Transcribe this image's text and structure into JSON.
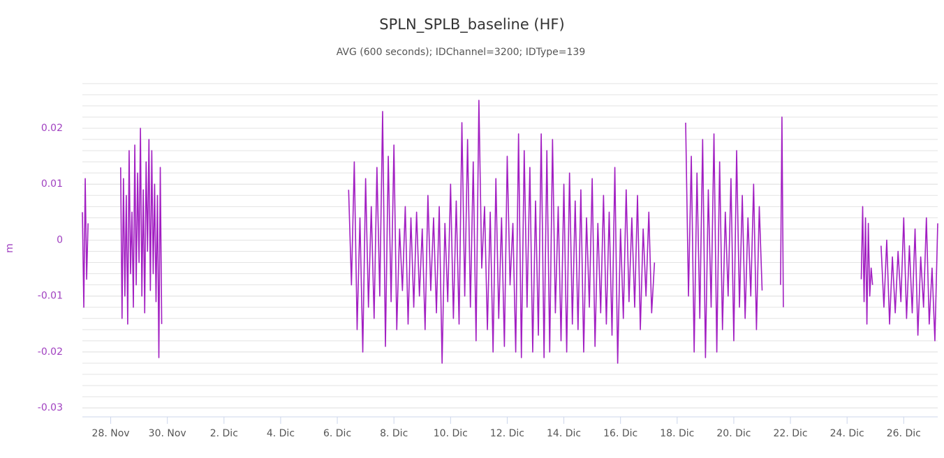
{
  "chart_data": {
    "type": "line",
    "title": "SPLN_SPLB_baseline (HF)",
    "subtitle": "AVG (600 seconds); IDChannel=3200; IDType=139",
    "y_label": "m",
    "xlim": [
      27,
      57.2
    ],
    "xticks": [
      {
        "value": 28,
        "label": "28. Nov"
      },
      {
        "value": 30,
        "label": "30. Nov"
      },
      {
        "value": 32,
        "label": "2. Dic"
      },
      {
        "value": 34,
        "label": "4. Dic"
      },
      {
        "value": 36,
        "label": "6. Dic"
      },
      {
        "value": 38,
        "label": "8. Dic"
      },
      {
        "value": 40,
        "label": "10. Dic"
      },
      {
        "value": 42,
        "label": "12. Dic"
      },
      {
        "value": 44,
        "label": "14. Dic"
      },
      {
        "value": 46,
        "label": "16. Dic"
      },
      {
        "value": 48,
        "label": "18. Dic"
      },
      {
        "value": 50,
        "label": "20. Dic"
      },
      {
        "value": 52,
        "label": "22. Dic"
      },
      {
        "value": 54,
        "label": "24. Dic"
      },
      {
        "value": 56,
        "label": "26. Dic"
      }
    ],
    "ylim": [
      -0.0316,
      0.0286
    ],
    "yticks": [
      -0.03,
      -0.02,
      -0.01,
      0,
      0.01,
      0.02
    ],
    "grid": true,
    "minor_grid_interval": 0.002,
    "color": "#a21fc2",
    "x": [
      27,
      27.05,
      27.1,
      27.15,
      27.2,
      27.6,
      28.35,
      28.4,
      28.45,
      28.5,
      28.55,
      28.6,
      28.65,
      28.7,
      28.75,
      28.8,
      28.85,
      28.9,
      28.95,
      29,
      29.05,
      29.1,
      29.15,
      29.2,
      29.25,
      29.3,
      29.35,
      29.4,
      29.45,
      29.5,
      29.55,
      29.6,
      29.65,
      29.7,
      29.75,
      29.8,
      32,
      36.4,
      36.5,
      36.6,
      36.7,
      36.8,
      36.9,
      37,
      37.1,
      37.2,
      37.3,
      37.4,
      37.5,
      37.6,
      37.7,
      37.8,
      37.9,
      38,
      38.1,
      38.2,
      38.3,
      38.4,
      38.5,
      38.6,
      38.7,
      38.8,
      38.9,
      39,
      39.1,
      39.2,
      39.3,
      39.4,
      39.5,
      39.6,
      39.7,
      39.8,
      39.9,
      40,
      40.1,
      40.2,
      40.3,
      40.4,
      40.5,
      40.6,
      40.7,
      40.8,
      40.9,
      41,
      41.1,
      41.2,
      41.3,
      41.4,
      41.5,
      41.6,
      41.7,
      41.8,
      41.9,
      42,
      42.1,
      42.2,
      42.3,
      42.4,
      42.5,
      42.6,
      42.7,
      42.8,
      42.9,
      43,
      43.1,
      43.2,
      43.3,
      43.4,
      43.5,
      43.6,
      43.7,
      43.8,
      43.9,
      44,
      44.1,
      44.2,
      44.3,
      44.4,
      44.5,
      44.6,
      44.7,
      44.8,
      44.9,
      45,
      45.1,
      45.2,
      45.3,
      45.4,
      45.5,
      45.6,
      45.7,
      45.8,
      45.9,
      46,
      46.1,
      46.2,
      46.3,
      46.4,
      46.5,
      46.6,
      46.7,
      46.8,
      46.9,
      47,
      47.1,
      47.2,
      47.8,
      48.3,
      48.4,
      48.5,
      48.6,
      48.7,
      48.8,
      48.9,
      49,
      49.1,
      49.2,
      49.3,
      49.4,
      49.5,
      49.6,
      49.7,
      49.8,
      49.9,
      50,
      50.1,
      50.2,
      50.3,
      50.4,
      50.5,
      50.6,
      50.7,
      50.8,
      50.9,
      51,
      51.3,
      51.65,
      51.7,
      51.75,
      53,
      54.5,
      54.55,
      54.6,
      54.65,
      54.7,
      54.75,
      54.8,
      54.85,
      54.9,
      55.05,
      55.2,
      55.3,
      55.4,
      55.5,
      55.6,
      55.7,
      55.8,
      55.9,
      56,
      56.1,
      56.2,
      56.3,
      56.4,
      56.5,
      56.6,
      56.7,
      56.8,
      56.9,
      57,
      57.1,
      57.2
    ],
    "values": [
      0.005,
      -0.012,
      0.011,
      -0.007,
      0.003,
      null,
      0.013,
      -0.014,
      0.011,
      -0.01,
      0.008,
      -0.015,
      0.016,
      -0.006,
      0.005,
      -0.012,
      0.017,
      -0.008,
      0.012,
      -0.004,
      0.02,
      -0.01,
      0.009,
      -0.013,
      0.014,
      -0.002,
      0.018,
      -0.009,
      0.016,
      -0.006,
      0.01,
      -0.011,
      0.008,
      -0.021,
      0.013,
      -0.015,
      null,
      0.009,
      -0.008,
      0.014,
      -0.016,
      0.004,
      -0.02,
      0.011,
      -0.012,
      0.006,
      -0.014,
      0.013,
      -0.01,
      0.023,
      -0.019,
      0.015,
      -0.011,
      0.017,
      -0.016,
      0.002,
      -0.009,
      0.006,
      -0.015,
      0.004,
      -0.012,
      0.005,
      -0.01,
      0.002,
      -0.016,
      0.008,
      -0.009,
      0.004,
      -0.013,
      0.006,
      -0.022,
      0.003,
      -0.011,
      0.01,
      -0.014,
      0.007,
      -0.015,
      0.021,
      -0.01,
      0.018,
      -0.012,
      0.014,
      -0.018,
      0.025,
      -0.005,
      0.006,
      -0.016,
      0.005,
      -0.02,
      0.011,
      -0.014,
      0.004,
      -0.019,
      0.015,
      -0.008,
      0.003,
      -0.02,
      0.019,
      -0.021,
      0.016,
      -0.012,
      0.013,
      -0.02,
      0.007,
      -0.017,
      0.019,
      -0.021,
      0.016,
      -0.02,
      0.018,
      -0.013,
      0.006,
      -0.018,
      0.01,
      -0.02,
      0.012,
      -0.015,
      0.007,
      -0.016,
      0.009,
      -0.02,
      0.004,
      -0.012,
      0.011,
      -0.019,
      0.003,
      -0.013,
      0.008,
      -0.015,
      0.005,
      -0.017,
      0.013,
      -0.022,
      0.002,
      -0.014,
      0.009,
      -0.011,
      0.004,
      -0.012,
      0.008,
      -0.016,
      0.002,
      -0.01,
      0.005,
      -0.013,
      -0.004,
      null,
      0.021,
      -0.01,
      0.015,
      -0.02,
      0.012,
      -0.014,
      0.018,
      -0.021,
      0.009,
      -0.012,
      0.019,
      -0.02,
      0.014,
      -0.016,
      0.005,
      -0.01,
      0.011,
      -0.018,
      0.016,
      -0.012,
      0.008,
      -0.014,
      0.004,
      -0.01,
      0.01,
      -0.016,
      0.006,
      -0.009,
      null,
      -0.008,
      0.022,
      -0.012,
      null,
      -0.007,
      0.006,
      -0.011,
      0.004,
      -0.015,
      0.003,
      -0.01,
      -0.005,
      -0.008,
      null,
      -0.001,
      -0.012,
      0,
      -0.015,
      -0.003,
      -0.013,
      -0.002,
      -0.011,
      0.004,
      -0.014,
      -0.001,
      -0.013,
      0.002,
      -0.017,
      -0.003,
      -0.012,
      0.004,
      -0.015,
      -0.005,
      -0.018,
      0.003
    ]
  }
}
